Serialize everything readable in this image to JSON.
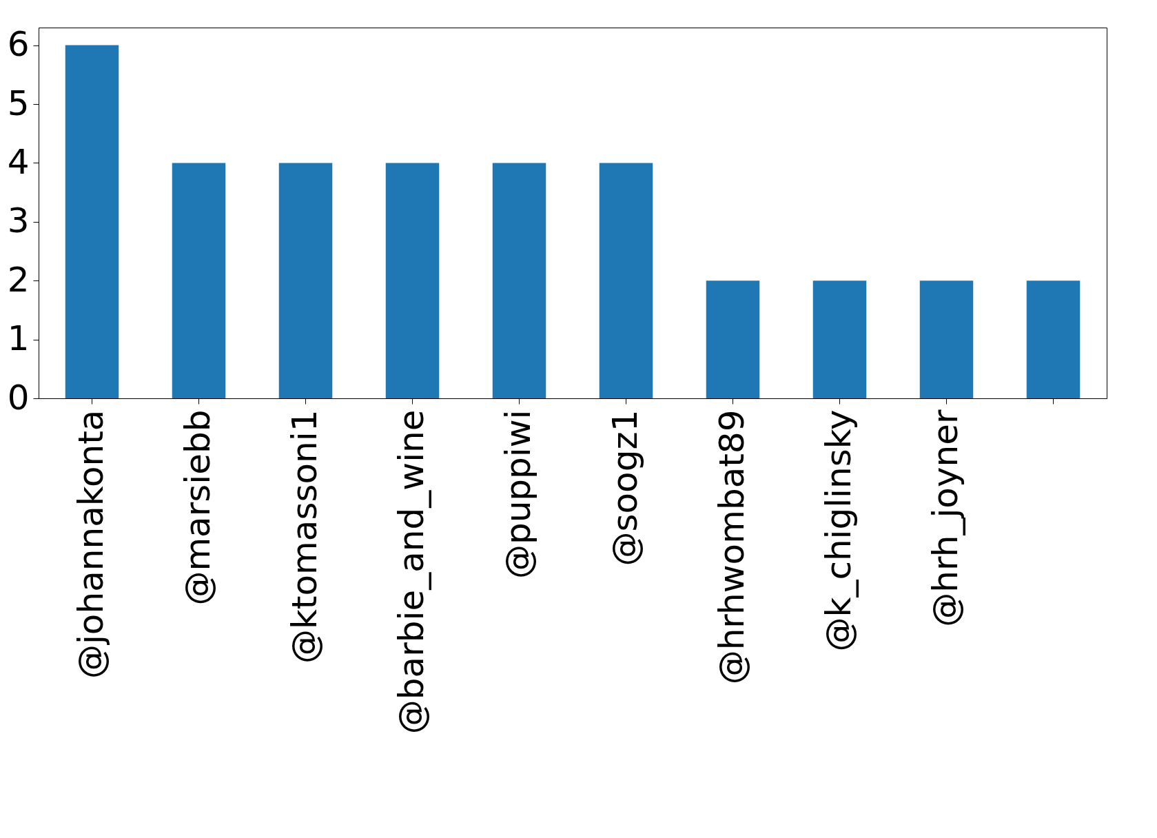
{
  "chart_data": {
    "type": "bar",
    "categories": [
      "@johannakonta",
      "@marsiebb",
      "@ktomassoni1",
      "@barbie_and_wine",
      "@puppiwi",
      "@soogz1",
      "@hrhwombat89",
      "@k_chiglinsky",
      "@hrh_joyner",
      null
    ],
    "values": [
      6,
      4,
      4,
      4,
      4,
      4,
      2,
      2,
      2,
      2
    ],
    "color": "#1f77b4",
    "ylim": [
      0,
      6.3
    ],
    "yticks": [
      0,
      1,
      2,
      3,
      4,
      5,
      6
    ],
    "grid": false
  }
}
